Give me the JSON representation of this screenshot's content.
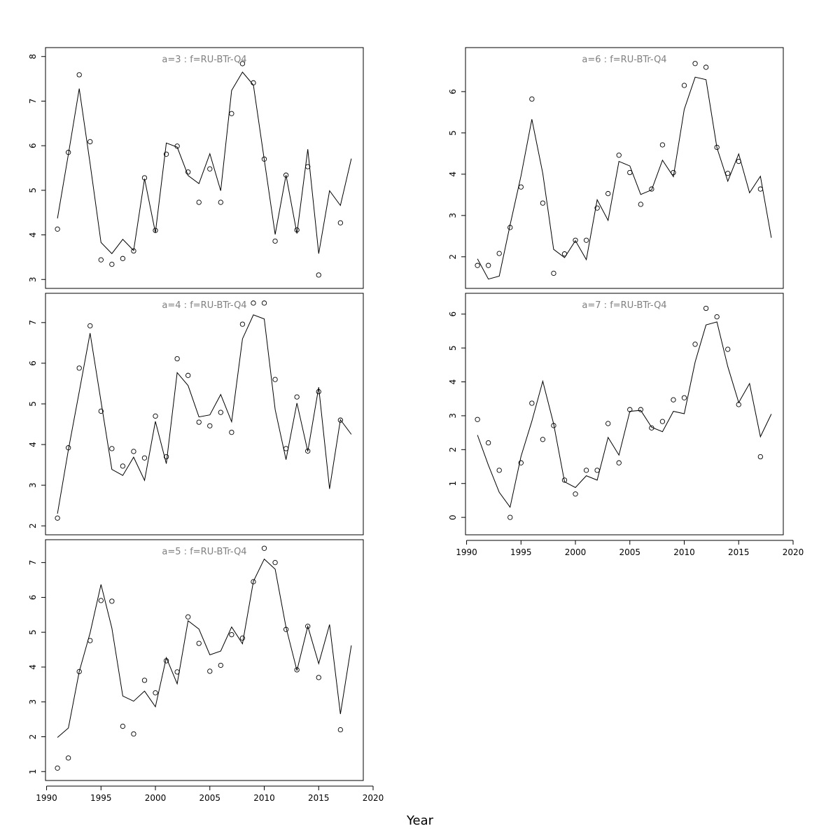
{
  "figure": {
    "xlabel": "Year"
  },
  "chart_data": [
    {
      "type": "line",
      "title": "a=3  :  f=RU-BTr-Q4",
      "xlim": [
        1990,
        2020
      ],
      "ylim": [
        3,
        8
      ],
      "yticks": [
        3,
        4,
        5,
        6,
        7,
        8
      ],
      "xticks": [],
      "series": [
        {
          "kind": "observed",
          "x": [
            1991,
            1992,
            1993,
            1994,
            1995,
            1996,
            1997,
            1998,
            1999,
            2000,
            2001,
            2002,
            2003,
            2004,
            2005,
            2006,
            2007,
            2008,
            2009,
            2010,
            2011,
            2012,
            2013,
            2014,
            2015,
            2017
          ],
          "y": [
            4.13,
            5.85,
            7.59,
            6.09,
            3.44,
            3.34,
            3.47,
            3.64,
            5.28,
            4.1,
            5.81,
            5.99,
            5.41,
            4.73,
            5.48,
            4.73,
            6.72,
            7.84,
            7.41,
            5.7,
            3.86,
            5.34,
            4.11,
            5.53,
            3.1,
            4.27
          ]
        },
        {
          "kind": "fitted",
          "x": [
            1991,
            1992,
            1993,
            1994,
            1995,
            1996,
            1997,
            1998,
            1999,
            2000,
            2001,
            2002,
            2003,
            2004,
            2005,
            2006,
            2007,
            2008,
            2009,
            2010,
            2011,
            2012,
            2013,
            2014,
            2015,
            2016,
            2017,
            2018
          ],
          "y": [
            4.37,
            5.81,
            7.28,
            5.6,
            3.83,
            3.58,
            3.9,
            3.65,
            5.26,
            4.05,
            6.06,
            5.97,
            5.33,
            5.15,
            5.82,
            4.99,
            7.24,
            7.65,
            7.36,
            5.69,
            4.01,
            5.34,
            4.03,
            5.92,
            3.58,
            4.99,
            4.66,
            5.71
          ]
        }
      ]
    },
    {
      "type": "line",
      "title": "a=4  :  f=RU-BTr-Q4",
      "xlim": [
        1990,
        2020
      ],
      "ylim": [
        2,
        7.5
      ],
      "yticks": [
        2,
        3,
        4,
        5,
        6,
        7
      ],
      "xticks": [],
      "series": [
        {
          "kind": "observed",
          "x": [
            1991,
            1992,
            1993,
            1994,
            1995,
            1996,
            1997,
            1998,
            1999,
            2000,
            2001,
            2002,
            2003,
            2004,
            2005,
            2006,
            2007,
            2008,
            2009,
            2010,
            2011,
            2012,
            2013,
            2014,
            2015,
            2017
          ],
          "y": [
            2.19,
            3.92,
            5.88,
            6.92,
            4.82,
            3.9,
            3.47,
            3.83,
            3.67,
            4.7,
            3.7,
            6.11,
            5.7,
            4.55,
            4.46,
            4.79,
            4.3,
            6.96,
            7.48,
            7.48,
            5.6,
            3.9,
            5.17,
            3.84,
            5.3,
            4.6
          ]
        },
        {
          "kind": "fitted",
          "x": [
            1991,
            1992,
            1993,
            1994,
            1995,
            1996,
            1997,
            1998,
            1999,
            2000,
            2001,
            2002,
            2003,
            2004,
            2005,
            2006,
            2007,
            2008,
            2009,
            2010,
            2011,
            2012,
            2013,
            2014,
            2015,
            2016,
            2017,
            2018
          ],
          "y": [
            2.3,
            3.87,
            5.3,
            6.74,
            5.06,
            3.39,
            3.24,
            3.69,
            3.12,
            4.57,
            3.53,
            5.77,
            5.45,
            4.68,
            4.73,
            5.23,
            4.56,
            6.6,
            7.19,
            7.09,
            4.86,
            3.63,
            5.02,
            3.83,
            5.41,
            2.91,
            4.61,
            4.25
          ]
        }
      ]
    },
    {
      "type": "line",
      "title": "a=5  :  f=RU-BTr-Q4",
      "xlim": [
        1990,
        2020
      ],
      "ylim": [
        1,
        7.4
      ],
      "yticks": [
        1,
        2,
        3,
        4,
        5,
        6,
        7
      ],
      "xticks": [
        1990,
        1995,
        2000,
        2005,
        2010,
        2015,
        2020
      ],
      "series": [
        {
          "kind": "observed",
          "x": [
            1991,
            1992,
            1993,
            1994,
            1995,
            1996,
            1997,
            1998,
            1999,
            2000,
            2001,
            2002,
            2003,
            2004,
            2005,
            2006,
            2007,
            2008,
            2009,
            2010,
            2011,
            2012,
            2013,
            2014,
            2015,
            2017
          ],
          "y": [
            1.1,
            1.39,
            3.87,
            4.76,
            5.91,
            5.89,
            2.3,
            2.08,
            3.62,
            3.26,
            4.18,
            3.86,
            5.44,
            4.68,
            3.88,
            4.05,
            4.93,
            4.83,
            6.45,
            7.41,
            7.0,
            5.08,
            3.92,
            5.17,
            3.7,
            2.2
          ]
        },
        {
          "kind": "fitted",
          "x": [
            1991,
            1992,
            1993,
            1994,
            1995,
            1996,
            1997,
            1998,
            1999,
            2000,
            2001,
            2002,
            2003,
            2004,
            2005,
            2006,
            2007,
            2008,
            2009,
            2010,
            2011,
            2012,
            2013,
            2014,
            2015,
            2016,
            2017,
            2018
          ],
          "y": [
            1.98,
            2.25,
            3.87,
            4.98,
            6.37,
            5.12,
            3.17,
            3.02,
            3.31,
            2.86,
            4.27,
            3.52,
            5.33,
            5.09,
            4.35,
            4.46,
            5.15,
            4.67,
            6.46,
            7.1,
            6.81,
            5.14,
            3.9,
            5.17,
            4.1,
            5.22,
            2.65,
            4.62
          ]
        }
      ]
    },
    {
      "type": "line",
      "title": "a=6  :  f=RU-BTr-Q4",
      "xlim": [
        1990,
        2020
      ],
      "ylim": [
        1.45,
        6.85
      ],
      "yticks": [
        2,
        3,
        4,
        5,
        6
      ],
      "xticks": [],
      "series": [
        {
          "kind": "observed",
          "x": [
            1991,
            1992,
            1993,
            1994,
            1995,
            1996,
            1997,
            1998,
            1999,
            2000,
            2001,
            2002,
            2003,
            2004,
            2005,
            2006,
            2007,
            2008,
            2009,
            2010,
            2011,
            2012,
            2013,
            2014,
            2015,
            2017
          ],
          "y": [
            1.79,
            1.79,
            2.08,
            2.71,
            3.69,
            5.82,
            3.3,
            1.6,
            2.07,
            2.4,
            2.4,
            3.18,
            3.53,
            4.46,
            4.04,
            3.27,
            3.64,
            4.71,
            4.04,
            6.15,
            6.68,
            6.59,
            4.65,
            4.02,
            4.31,
            3.64
          ]
        },
        {
          "kind": "fitted",
          "x": [
            1991,
            1992,
            1993,
            1994,
            1995,
            1996,
            1997,
            1998,
            1999,
            2000,
            2001,
            2002,
            2003,
            2004,
            2005,
            2006,
            2007,
            2008,
            2009,
            2010,
            2011,
            2012,
            2013,
            2014,
            2015,
            2016,
            2017,
            2018
          ],
          "y": [
            1.95,
            1.46,
            1.53,
            2.77,
            3.96,
            5.33,
            4.02,
            2.18,
            1.98,
            2.39,
            1.93,
            3.38,
            2.88,
            4.31,
            4.2,
            3.51,
            3.62,
            4.34,
            3.94,
            5.57,
            6.35,
            6.29,
            4.64,
            3.83,
            4.49,
            3.55,
            3.95,
            2.46
          ]
        }
      ]
    },
    {
      "type": "line",
      "title": "a=7  :  f=RU-BTr-Q4",
      "xlim": [
        1990,
        2020
      ],
      "ylim": [
        -0.25,
        6.35
      ],
      "yticks": [
        0,
        1,
        2,
        3,
        4,
        5,
        6
      ],
      "xticks": [
        1990,
        1995,
        2000,
        2005,
        2010,
        2015,
        2020
      ],
      "series": [
        {
          "kind": "observed",
          "x": [
            1991,
            1992,
            1993,
            1994,
            1995,
            1996,
            1997,
            1998,
            1999,
            2000,
            2001,
            2002,
            2003,
            2004,
            2005,
            2006,
            2007,
            2008,
            2009,
            2010,
            2011,
            2012,
            2013,
            2014,
            2015,
            2017
          ],
          "y": [
            2.89,
            2.2,
            1.39,
            0.0,
            1.61,
            3.37,
            2.3,
            2.71,
            1.1,
            0.69,
            1.39,
            1.39,
            2.77,
            1.61,
            3.18,
            3.18,
            2.64,
            2.83,
            3.47,
            3.53,
            5.11,
            6.17,
            5.92,
            4.96,
            3.33,
            1.79
          ]
        },
        {
          "kind": "fitted",
          "x": [
            1991,
            1992,
            1993,
            1994,
            1995,
            1996,
            1997,
            1998,
            1999,
            2000,
            2001,
            2002,
            2003,
            2004,
            2005,
            2006,
            2007,
            2008,
            2009,
            2010,
            2011,
            2012,
            2013,
            2014,
            2015,
            2016,
            2017,
            2018
          ],
          "y": [
            2.43,
            1.54,
            0.74,
            0.3,
            1.8,
            2.84,
            4.02,
            2.76,
            1.05,
            0.88,
            1.23,
            1.1,
            2.36,
            1.84,
            3.13,
            3.16,
            2.66,
            2.53,
            3.13,
            3.06,
            4.59,
            5.68,
            5.77,
            4.45,
            3.39,
            3.95,
            2.38,
            3.05
          ]
        }
      ]
    }
  ]
}
